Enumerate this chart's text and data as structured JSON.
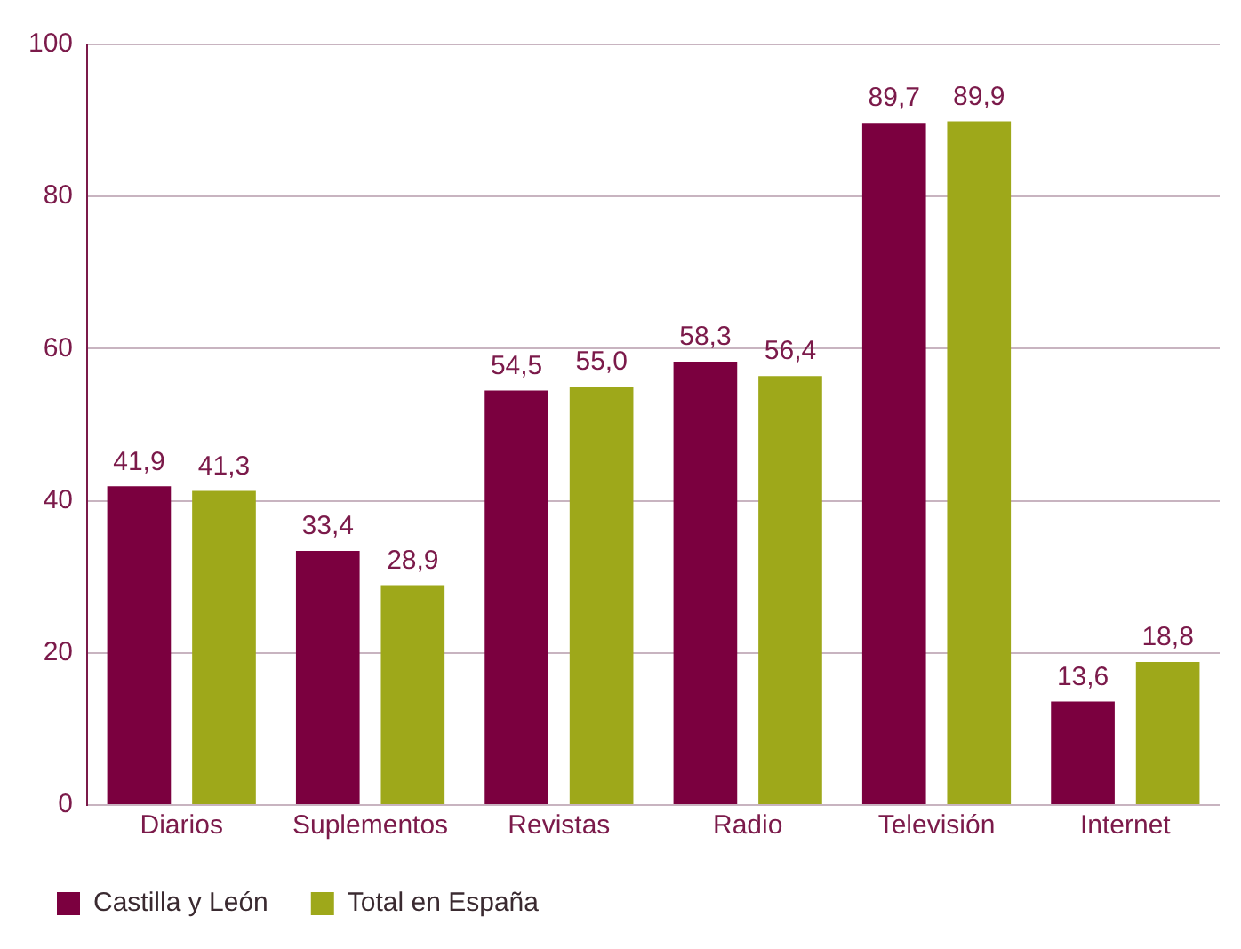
{
  "chart_data": {
    "type": "bar",
    "categories": [
      "Diarios",
      "Suplementos",
      "Revistas",
      "Radio",
      "Televisión",
      "Internet"
    ],
    "series": [
      {
        "name": "Castilla y León",
        "color": "#7b003f",
        "values": [
          41.9,
          33.4,
          54.5,
          58.3,
          89.7,
          13.6
        ],
        "value_labels": [
          "41,9",
          "33,4",
          "54,5",
          "58,3",
          "89,7",
          "13,6"
        ]
      },
      {
        "name": "Total en España",
        "color": "#9ea81a",
        "values": [
          41.3,
          28.9,
          55.0,
          56.4,
          89.9,
          18.8
        ],
        "value_labels": [
          "41,3",
          "28,9",
          "55,0",
          "56,4",
          "89,9",
          "18,8"
        ]
      }
    ],
    "ylim": [
      0,
      100
    ],
    "yticks": [
      0,
      20,
      40,
      60,
      80,
      100
    ],
    "grid": "y",
    "legend": "bottom"
  }
}
